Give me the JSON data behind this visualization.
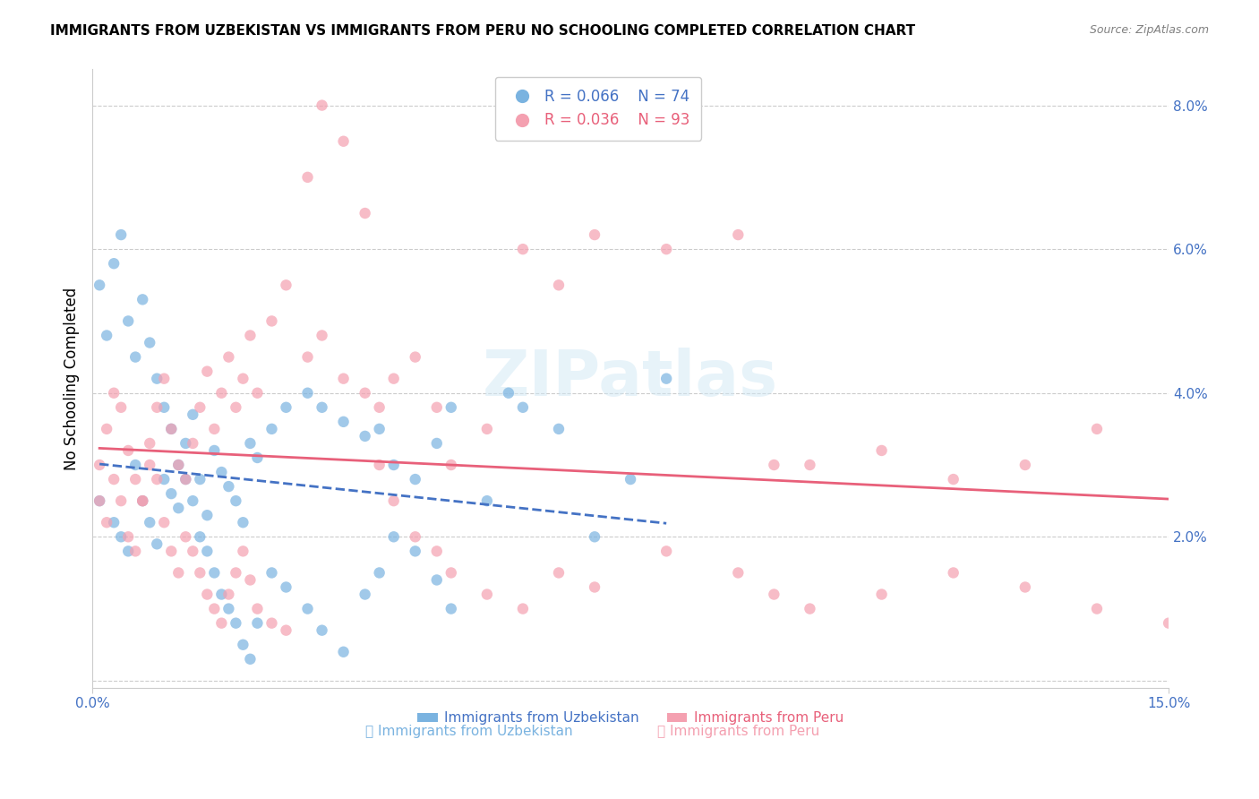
{
  "title": "IMMIGRANTS FROM UZBEKISTAN VS IMMIGRANTS FROM PERU NO SCHOOLING COMPLETED CORRELATION CHART",
  "source_text": "Source: ZipAtlas.com",
  "xlabel": "",
  "ylabel": "No Schooling Completed",
  "xlim": [
    0.0,
    0.15
  ],
  "ylim": [
    -0.001,
    0.085
  ],
  "right_yticks": [
    0.0,
    0.02,
    0.04,
    0.06,
    0.08
  ],
  "right_yticklabels": [
    "",
    "2.0%",
    "4.0%",
    "6.0%",
    "8.0%"
  ],
  "xtick_positions": [
    0.0,
    0.15
  ],
  "xtick_labels": [
    "0.0%",
    "15.0%"
  ],
  "uzbekistan_color": "#7ab3e0",
  "peru_color": "#f4a0b0",
  "uzbekistan_line_color": "#4472c4",
  "peru_line_color": "#e8607a",
  "legend_r1": "R = 0.066",
  "legend_n1": "N = 74",
  "legend_r2": "R = 0.036",
  "legend_n2": "N = 93",
  "watermark": "ZIPatlas",
  "legend1_label": "Immigrants from Uzbekistan",
  "legend2_label": "Immigrants from Peru",
  "uzbekistan_x": [
    0.001,
    0.003,
    0.004,
    0.005,
    0.006,
    0.007,
    0.008,
    0.009,
    0.01,
    0.011,
    0.012,
    0.013,
    0.014,
    0.015,
    0.016,
    0.017,
    0.018,
    0.019,
    0.02,
    0.021,
    0.022,
    0.023,
    0.025,
    0.027,
    0.03,
    0.032,
    0.035,
    0.038,
    0.04,
    0.042,
    0.045,
    0.048,
    0.05,
    0.055,
    0.058,
    0.06,
    0.065,
    0.07,
    0.075,
    0.08,
    0.001,
    0.002,
    0.003,
    0.004,
    0.005,
    0.006,
    0.007,
    0.008,
    0.009,
    0.01,
    0.011,
    0.012,
    0.013,
    0.014,
    0.015,
    0.016,
    0.017,
    0.018,
    0.019,
    0.02,
    0.021,
    0.022,
    0.023,
    0.025,
    0.027,
    0.03,
    0.032,
    0.035,
    0.038,
    0.04,
    0.042,
    0.045,
    0.048,
    0.05
  ],
  "uzbekistan_y": [
    0.025,
    0.022,
    0.02,
    0.018,
    0.03,
    0.025,
    0.022,
    0.019,
    0.028,
    0.026,
    0.024,
    0.033,
    0.037,
    0.028,
    0.023,
    0.032,
    0.029,
    0.027,
    0.025,
    0.022,
    0.033,
    0.031,
    0.035,
    0.038,
    0.04,
    0.038,
    0.036,
    0.034,
    0.035,
    0.03,
    0.028,
    0.033,
    0.038,
    0.025,
    0.04,
    0.038,
    0.035,
    0.02,
    0.028,
    0.042,
    0.055,
    0.048,
    0.058,
    0.062,
    0.05,
    0.045,
    0.053,
    0.047,
    0.042,
    0.038,
    0.035,
    0.03,
    0.028,
    0.025,
    0.02,
    0.018,
    0.015,
    0.012,
    0.01,
    0.008,
    0.005,
    0.003,
    0.008,
    0.015,
    0.013,
    0.01,
    0.007,
    0.004,
    0.012,
    0.015,
    0.02,
    0.018,
    0.014,
    0.01
  ],
  "peru_x": [
    0.001,
    0.002,
    0.003,
    0.004,
    0.005,
    0.006,
    0.007,
    0.008,
    0.009,
    0.01,
    0.011,
    0.012,
    0.013,
    0.014,
    0.015,
    0.016,
    0.017,
    0.018,
    0.019,
    0.02,
    0.021,
    0.022,
    0.023,
    0.025,
    0.027,
    0.03,
    0.032,
    0.035,
    0.038,
    0.04,
    0.042,
    0.045,
    0.048,
    0.05,
    0.055,
    0.06,
    0.065,
    0.07,
    0.08,
    0.09,
    0.095,
    0.1,
    0.11,
    0.12,
    0.13,
    0.14,
    0.001,
    0.002,
    0.003,
    0.004,
    0.005,
    0.006,
    0.007,
    0.008,
    0.009,
    0.01,
    0.011,
    0.012,
    0.013,
    0.014,
    0.015,
    0.016,
    0.017,
    0.018,
    0.019,
    0.02,
    0.021,
    0.022,
    0.023,
    0.025,
    0.027,
    0.03,
    0.032,
    0.035,
    0.038,
    0.04,
    0.042,
    0.045,
    0.048,
    0.05,
    0.055,
    0.06,
    0.065,
    0.07,
    0.08,
    0.09,
    0.095,
    0.1,
    0.11,
    0.12,
    0.13,
    0.14,
    0.15
  ],
  "peru_y": [
    0.03,
    0.035,
    0.04,
    0.038,
    0.032,
    0.028,
    0.025,
    0.033,
    0.038,
    0.042,
    0.035,
    0.03,
    0.028,
    0.033,
    0.038,
    0.043,
    0.035,
    0.04,
    0.045,
    0.038,
    0.042,
    0.048,
    0.04,
    0.05,
    0.055,
    0.045,
    0.048,
    0.042,
    0.04,
    0.038,
    0.042,
    0.045,
    0.038,
    0.03,
    0.035,
    0.06,
    0.055,
    0.062,
    0.06,
    0.062,
    0.03,
    0.03,
    0.032,
    0.028,
    0.03,
    0.035,
    0.025,
    0.022,
    0.028,
    0.025,
    0.02,
    0.018,
    0.025,
    0.03,
    0.028,
    0.022,
    0.018,
    0.015,
    0.02,
    0.018,
    0.015,
    0.012,
    0.01,
    0.008,
    0.012,
    0.015,
    0.018,
    0.014,
    0.01,
    0.008,
    0.007,
    0.07,
    0.08,
    0.075,
    0.065,
    0.03,
    0.025,
    0.02,
    0.018,
    0.015,
    0.012,
    0.01,
    0.015,
    0.013,
    0.018,
    0.015,
    0.012,
    0.01,
    0.012,
    0.015,
    0.013,
    0.01,
    0.008
  ]
}
